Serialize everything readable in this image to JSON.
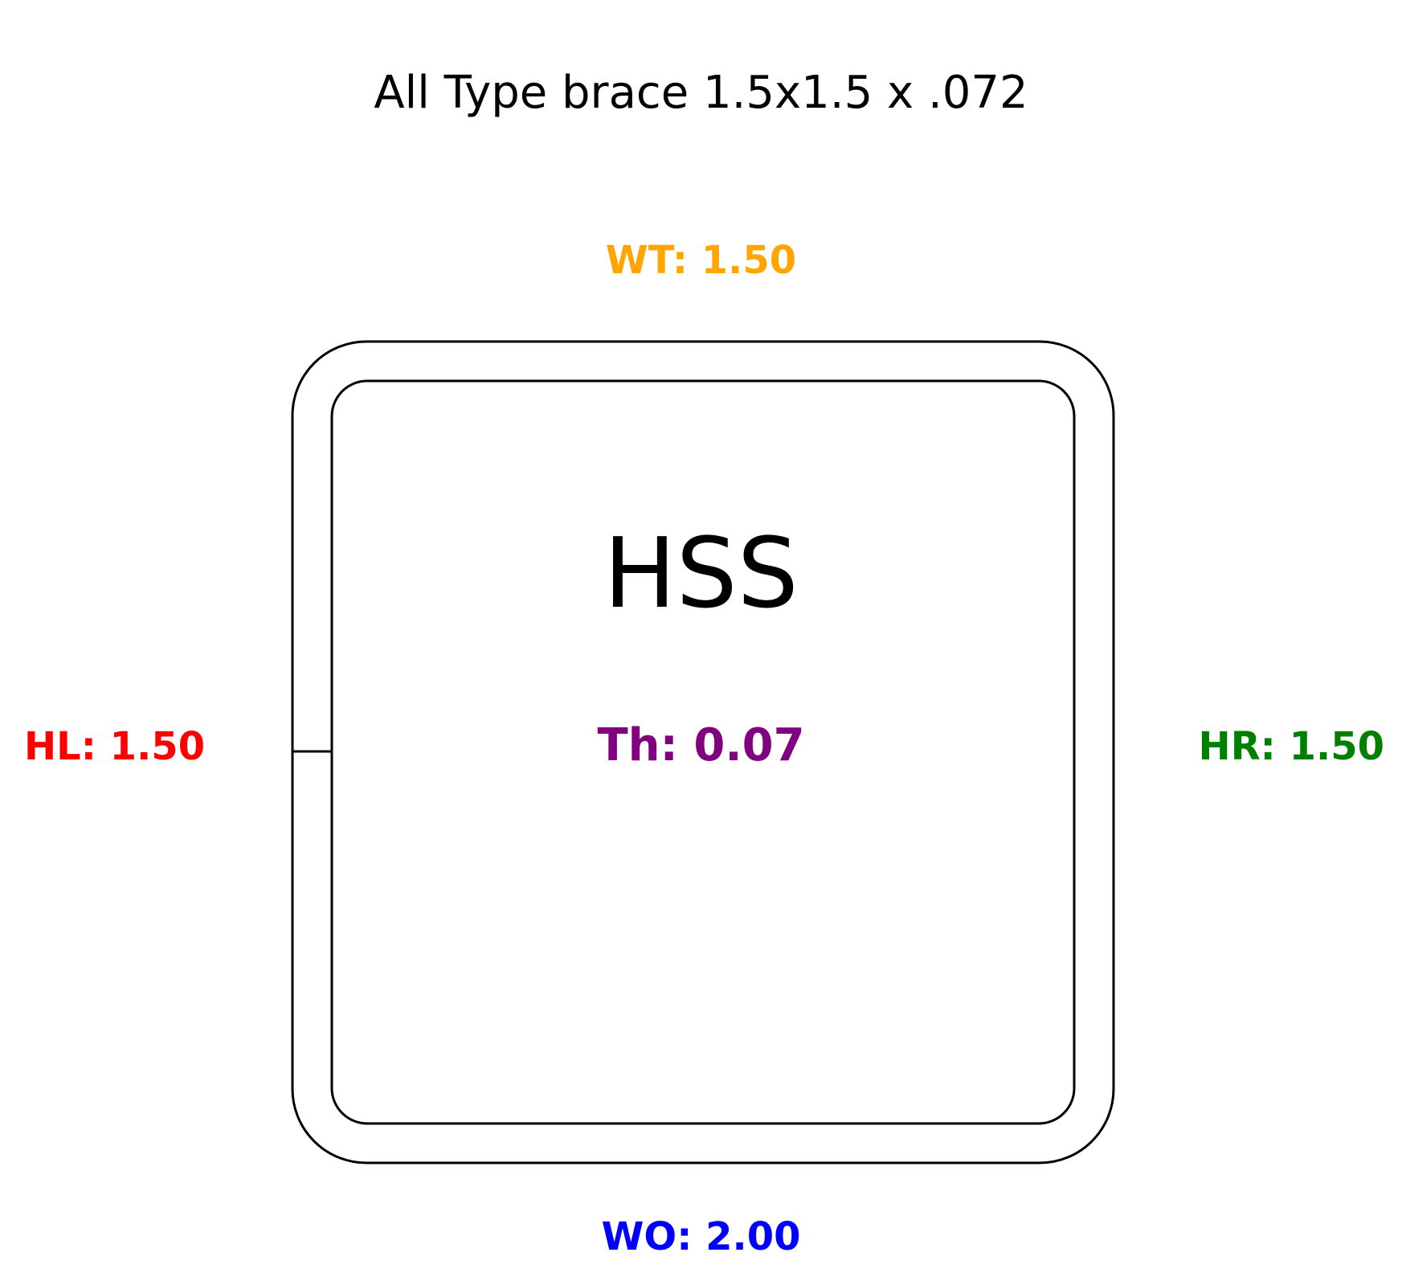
{
  "title": "All Type brace 1.5x1.5 x .072",
  "section_name": "HSS",
  "dimensions": {
    "top": {
      "text": "WT: 1.50",
      "color": "#ffa500"
    },
    "bottom": {
      "text": "WO: 2.00",
      "color": "#0000ff"
    },
    "left": {
      "text": "HL: 1.50",
      "color": "#ff0000"
    },
    "right": {
      "text": "HR: 1.50",
      "color": "#008000"
    },
    "thickness": {
      "text": "Th: 0.07",
      "color": "#800080"
    }
  }
}
